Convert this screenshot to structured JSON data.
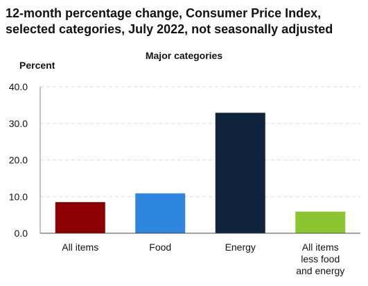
{
  "chart_data": {
    "type": "bar",
    "title": "12-month percentage change, Consumer Price Index, selected categories, July 2022, not seasonally adjusted",
    "subtitle": "Major categories",
    "ylabel": "Percent",
    "xlabel": "",
    "ylim": [
      0,
      40
    ],
    "yticks": [
      "0.0",
      "10.0",
      "20.0",
      "30.0",
      "40.0"
    ],
    "grid": true,
    "categories": [
      "All items",
      "Food",
      "Energy",
      "All items less food and energy"
    ],
    "category_lines": [
      [
        "All items"
      ],
      [
        "Food"
      ],
      [
        "Energy"
      ],
      [
        "All items",
        "less food",
        "and energy"
      ]
    ],
    "values": [
      8.5,
      10.9,
      32.9,
      5.9
    ],
    "colors": [
      "#8b0000",
      "#2e86de",
      "#10243d",
      "#8bc530"
    ]
  }
}
